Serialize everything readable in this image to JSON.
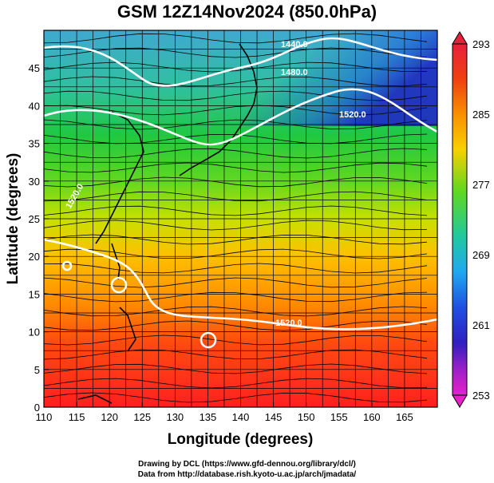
{
  "title": "GSM 12Z14Nov2024 (850.0hPa)",
  "map": {
    "xlabel": "Longitude (degrees)",
    "ylabel": "Latitude  (degrees)",
    "lon_range": [
      110,
      170
    ],
    "lat_range": [
      0,
      50
    ],
    "lon_ticks": [
      110,
      115,
      120,
      125,
      130,
      135,
      140,
      145,
      150,
      155,
      160,
      165
    ],
    "lat_ticks": [
      0,
      5,
      10,
      15,
      20,
      25,
      30,
      35,
      40,
      45
    ],
    "contour_labels": [
      "1440.0",
      "1480.0",
      "1520.0",
      "1520.0",
      "1520.0"
    ]
  },
  "colorbar": {
    "ticks": [
      293,
      285,
      277,
      269,
      261,
      253
    ],
    "colors": [
      "#e8203c",
      "#f06010",
      "#f8b000",
      "#a8e000",
      "#30d040",
      "#20c8b0",
      "#20a0f0",
      "#2050e0",
      "#2020c0",
      "#8020c0",
      "#e020c8"
    ]
  },
  "credits": {
    "line1": "Drawing by DCL (https://www.gfd-dennou.org/library/dcl/)",
    "line2": "Data from http://database.rish.kyoto-u.ac.jp/arch/jmadata/"
  }
}
